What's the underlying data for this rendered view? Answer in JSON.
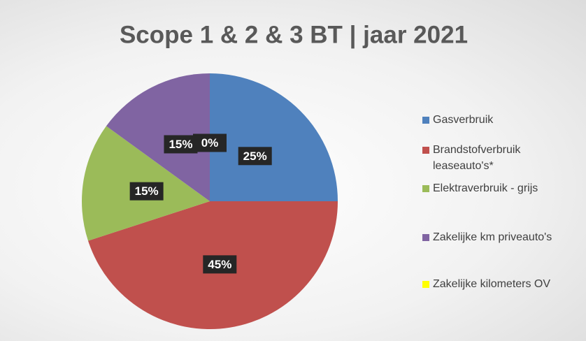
{
  "chart_data": {
    "type": "pie",
    "title": "Scope 1 & 2 & 3 BT | jaar 2021",
    "categories": [
      "Gasverbruik",
      "Brandstofverbruik leaseauto's*",
      "Elektraverbruik - grijs",
      "Zakelijke km priveauto's",
      "Zakelijke kilometers OV"
    ],
    "values": [
      25,
      45,
      15,
      15,
      0
    ],
    "value_labels": [
      "25%",
      "45%",
      "15%",
      "15%",
      "0%"
    ],
    "colors": [
      "#4f81bd",
      "#c0504d",
      "#9bbb59",
      "#8064a2",
      "#ffff00"
    ],
    "legend": "right"
  }
}
